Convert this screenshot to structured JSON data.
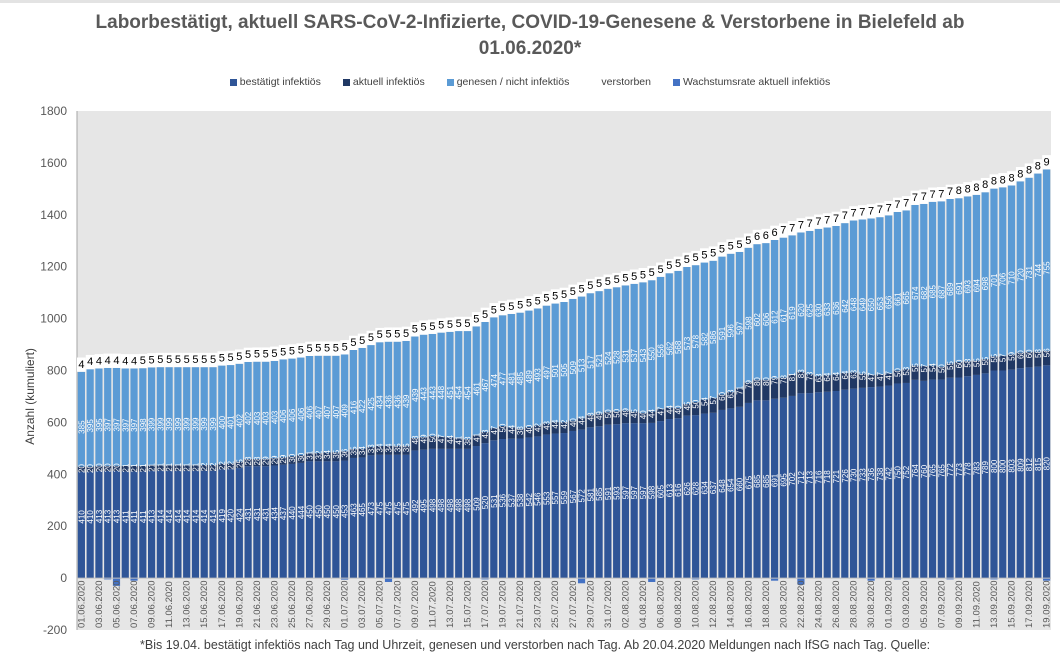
{
  "chart_data": {
    "type": "bar",
    "stacked": true,
    "title": "Laborbestätigt, aktuell SARS-CoV-2-Infizierte, COVID-19-Genesene & Verstorbene in Bielefeld ab 01.06.2020*",
    "ylabel": "Anzahl (kumuliert)",
    "xlabel": "",
    "ylim": [
      -200,
      1800
    ],
    "yticks": [
      -200,
      0,
      200,
      400,
      600,
      800,
      1000,
      1200,
      1400,
      1600,
      1800
    ],
    "grid": false,
    "legend_position": "top",
    "legend": [
      {
        "name": "bestätigt infektiös",
        "color": "#2f5597"
      },
      {
        "name": "aktuell infektiös",
        "color": "#203864"
      },
      {
        "name": "genesen / nicht infektiös",
        "color": "#5b9bd5"
      },
      {
        "name": "verstorben",
        "color": "#ffffff"
      },
      {
        "name": "Wachstumsrate aktuell infektiös",
        "color": "#4472c4"
      }
    ],
    "start_date": "01.06.2020",
    "end_date": "19.09.2020",
    "x_tick_every": 2,
    "bestaetigt_anchors": [
      [
        0,
        410
      ],
      [
        1,
        410
      ],
      [
        2,
        413
      ],
      [
        3,
        413
      ],
      [
        4,
        413
      ],
      [
        5,
        411
      ],
      [
        6,
        411
      ],
      [
        7,
        411
      ],
      [
        8,
        413
      ],
      [
        9,
        414
      ],
      [
        15,
        414
      ],
      [
        16,
        419
      ],
      [
        17,
        420
      ],
      [
        18,
        424
      ],
      [
        19,
        431
      ],
      [
        20,
        431
      ],
      [
        21,
        431
      ],
      [
        22,
        434
      ],
      [
        23,
        437
      ],
      [
        24,
        440
      ],
      [
        25,
        444
      ],
      [
        26,
        450
      ],
      [
        27,
        450
      ],
      [
        28,
        450
      ],
      [
        29,
        450
      ],
      [
        30,
        453
      ],
      [
        31,
        463
      ],
      [
        32,
        465
      ],
      [
        33,
        473
      ],
      [
        34,
        475
      ],
      [
        37,
        475
      ],
      [
        38,
        492
      ],
      [
        39,
        495
      ],
      [
        40,
        498
      ],
      [
        44,
        498
      ],
      [
        45,
        509
      ],
      [
        46,
        520
      ],
      [
        47,
        531
      ],
      [
        48,
        536
      ],
      [
        50,
        538
      ],
      [
        51,
        542
      ],
      [
        52,
        546
      ],
      [
        53,
        553
      ],
      [
        54,
        557
      ],
      [
        55,
        559
      ],
      [
        56,
        567
      ],
      [
        57,
        572
      ],
      [
        58,
        581
      ],
      [
        59,
        585
      ],
      [
        60,
        591
      ],
      [
        61,
        593
      ],
      [
        62,
        597
      ],
      [
        64,
        597
      ],
      [
        65,
        598
      ],
      [
        66,
        605
      ],
      [
        67,
        613
      ],
      [
        68,
        616
      ],
      [
        69,
        626
      ],
      [
        70,
        628
      ],
      [
        71,
        634
      ],
      [
        72,
        637
      ],
      [
        73,
        648
      ],
      [
        74,
        654
      ],
      [
        75,
        660
      ],
      [
        76,
        675
      ],
      [
        77,
        685
      ],
      [
        78,
        685
      ],
      [
        79,
        691
      ],
      [
        80,
        695
      ],
      [
        81,
        702
      ],
      [
        82,
        712
      ],
      [
        83,
        713
      ],
      [
        84,
        716
      ],
      [
        85,
        718
      ],
      [
        86,
        721
      ],
      [
        87,
        726
      ],
      [
        88,
        730
      ],
      [
        89,
        733
      ],
      [
        90,
        736
      ],
      [
        91,
        738
      ],
      [
        92,
        742
      ],
      [
        93,
        750
      ],
      [
        94,
        752
      ],
      [
        95,
        764
      ],
      [
        96,
        760
      ],
      [
        97,
        765
      ],
      [
        98,
        765
      ],
      [
        99,
        772
      ],
      [
        100,
        773
      ],
      [
        101,
        778
      ],
      [
        102,
        783
      ],
      [
        103,
        789
      ],
      [
        104,
        800
      ],
      [
        105,
        800
      ],
      [
        106,
        803
      ],
      [
        107,
        809
      ],
      [
        108,
        812
      ],
      [
        109,
        815
      ],
      [
        110,
        820
      ]
    ],
    "genesen_anchors": [
      [
        0,
        385
      ],
      [
        1,
        395
      ],
      [
        2,
        395
      ],
      [
        3,
        397
      ],
      [
        4,
        397
      ],
      [
        5,
        397
      ],
      [
        6,
        397
      ],
      [
        7,
        398
      ],
      [
        8,
        399
      ],
      [
        15,
        399
      ],
      [
        16,
        400
      ],
      [
        17,
        401
      ],
      [
        18,
        402
      ],
      [
        19,
        402
      ],
      [
        20,
        403
      ],
      [
        21,
        403
      ],
      [
        22,
        403
      ],
      [
        23,
        406
      ],
      [
        24,
        406
      ],
      [
        25,
        406
      ],
      [
        26,
        406
      ],
      [
        27,
        407
      ],
      [
        28,
        407
      ],
      [
        29,
        407
      ],
      [
        30,
        409
      ],
      [
        31,
        416
      ],
      [
        32,
        422
      ],
      [
        33,
        425
      ],
      [
        34,
        434
      ],
      [
        35,
        436
      ],
      [
        36,
        436
      ],
      [
        37,
        439
      ],
      [
        38,
        439
      ],
      [
        39,
        443
      ],
      [
        40,
        443
      ],
      [
        41,
        448
      ],
      [
        42,
        451
      ],
      [
        43,
        454
      ],
      [
        44,
        454
      ],
      [
        45,
        461
      ],
      [
        46,
        467
      ],
      [
        47,
        474
      ],
      [
        48,
        477
      ],
      [
        50,
        485
      ],
      [
        52,
        493
      ],
      [
        54,
        501
      ],
      [
        56,
        509
      ],
      [
        58,
        517
      ],
      [
        60,
        524
      ],
      [
        62,
        531
      ],
      [
        64,
        543
      ],
      [
        66,
        556
      ],
      [
        68,
        568
      ],
      [
        70,
        578
      ],
      [
        72,
        586
      ],
      [
        74,
        596
      ],
      [
        76,
        598
      ],
      [
        78,
        606
      ],
      [
        80,
        617
      ],
      [
        82,
        620
      ],
      [
        84,
        630
      ],
      [
        86,
        636
      ],
      [
        88,
        648
      ],
      [
        90,
        650
      ],
      [
        92,
        656
      ],
      [
        94,
        665
      ],
      [
        96,
        682
      ],
      [
        98,
        687
      ],
      [
        100,
        691
      ],
      [
        102,
        694
      ],
      [
        104,
        701
      ],
      [
        106,
        710
      ],
      [
        107,
        720
      ],
      [
        108,
        731
      ],
      [
        109,
        744
      ],
      [
        110,
        755
      ]
    ],
    "aktuell_anchors": [
      [
        0,
        20
      ],
      [
        10,
        21
      ],
      [
        17,
        22
      ],
      [
        19,
        28
      ],
      [
        25,
        30
      ],
      [
        30,
        36
      ],
      [
        33,
        33
      ],
      [
        37,
        35
      ],
      [
        38,
        48
      ],
      [
        40,
        50
      ],
      [
        44,
        38
      ],
      [
        46,
        43
      ],
      [
        48,
        50
      ],
      [
        50,
        38
      ],
      [
        52,
        42
      ],
      [
        54,
        44
      ],
      [
        56,
        40
      ],
      [
        58,
        48
      ],
      [
        60,
        50
      ],
      [
        62,
        49
      ],
      [
        64,
        40
      ],
      [
        66,
        47
      ],
      [
        68,
        40
      ],
      [
        70,
        50
      ],
      [
        72,
        57
      ],
      [
        74,
        63
      ],
      [
        76,
        79
      ],
      [
        78,
        80
      ],
      [
        80,
        78
      ],
      [
        82,
        83
      ],
      [
        84,
        63
      ],
      [
        86,
        64
      ],
      [
        88,
        63
      ],
      [
        90,
        47
      ],
      [
        92,
        47
      ],
      [
        94,
        53
      ],
      [
        96,
        57
      ],
      [
        98,
        50
      ],
      [
        100,
        60
      ],
      [
        102,
        55
      ],
      [
        104,
        55
      ],
      [
        106,
        59
      ],
      [
        108,
        60
      ],
      [
        110,
        56
      ]
    ],
    "verstorben_anchors": [
      [
        0,
        4
      ],
      [
        6,
        4
      ],
      [
        7,
        5
      ],
      [
        76,
        5
      ],
      [
        77,
        6
      ],
      [
        79,
        6
      ],
      [
        80,
        7
      ],
      [
        99,
        7
      ],
      [
        100,
        8
      ],
      [
        109,
        8
      ],
      [
        110,
        9
      ]
    ],
    "wachstumsrate_neg": [
      [
        3,
        -5
      ],
      [
        4,
        -30
      ],
      [
        6,
        -10
      ],
      [
        30,
        -6
      ],
      [
        35,
        -15
      ],
      [
        46,
        -5
      ],
      [
        57,
        -20
      ],
      [
        65,
        -15
      ],
      [
        70,
        -5
      ],
      [
        79,
        -10
      ],
      [
        82,
        -25
      ],
      [
        90,
        -10
      ],
      [
        93,
        -5
      ],
      [
        99,
        -5
      ],
      [
        104,
        -5
      ],
      [
        110,
        -10
      ]
    ]
  },
  "footnote": "*Bis 19.04. bestätigt infektiös nach Tag und Uhrzeit, genesen und verstorben nach Tag. Ab 20.04.2020 Meldungen nach IfSG nach Tag. Quelle:"
}
